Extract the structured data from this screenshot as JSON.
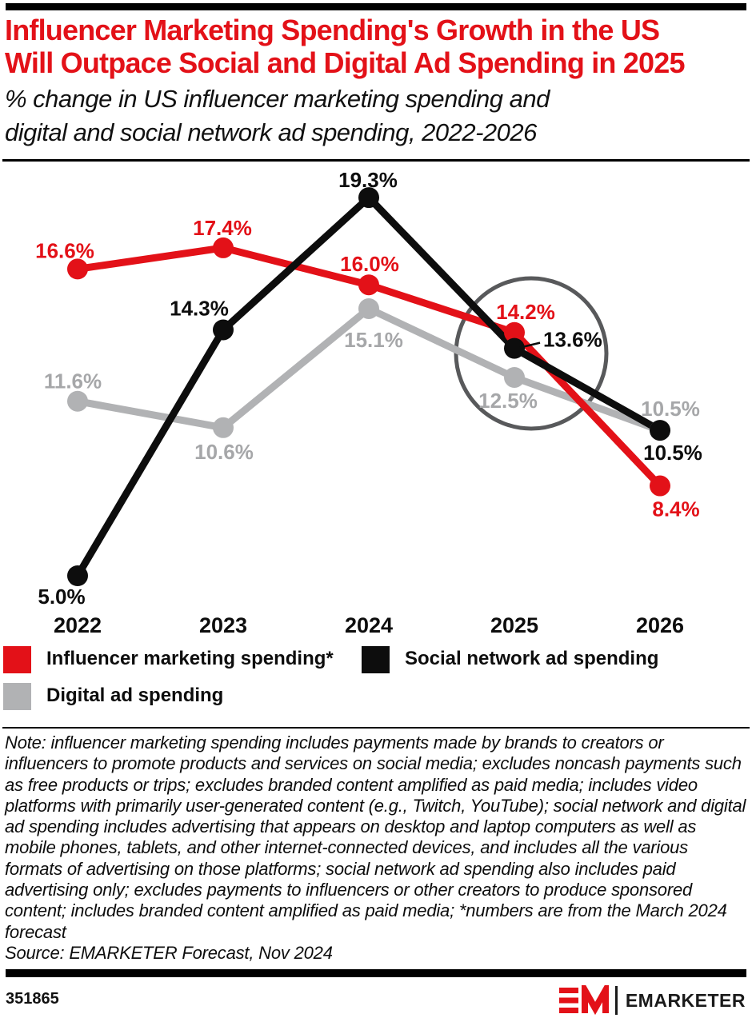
{
  "header": {
    "title_line1": "Influencer Marketing Spending's Growth in the US",
    "title_line2": "Will Outpace Social and Digital Ad Spending in 2025",
    "subtitle_line1": "% change in US influencer marketing spending and",
    "subtitle_line2": "digital and social network ad spending, 2022-2026"
  },
  "chart_data": {
    "type": "line",
    "title": "Influencer Marketing Spending's Growth in the US Will Outpace Social and Digital Ad Spending in 2025",
    "subtitle": "% change in US influencer marketing spending and digital and social network ad spending, 2022-2026",
    "categories": [
      "2022",
      "2023",
      "2024",
      "2025",
      "2026"
    ],
    "series": [
      {
        "name": "Influencer marketing spending*",
        "color": "#e31118",
        "label_color": "#e31118",
        "values": [
          16.6,
          17.4,
          16.0,
          14.2,
          8.4
        ],
        "labels": [
          "16.6%",
          "17.4%",
          "16.0%",
          "14.2%",
          "8.4%"
        ]
      },
      {
        "name": "Social network ad spending",
        "color": "#0d0d0d",
        "label_color": "#0d0d0d",
        "values": [
          5.0,
          14.3,
          19.3,
          13.6,
          10.5
        ],
        "labels": [
          "5.0%",
          "14.3%",
          "19.3%",
          "13.6%",
          "10.5%"
        ]
      },
      {
        "name": "Digital ad spending",
        "color": "#b1b2b4",
        "label_color": "#a6a7a9",
        "values": [
          11.6,
          10.6,
          15.1,
          12.5,
          10.5
        ],
        "labels": [
          "11.6%",
          "10.6%",
          "15.1%",
          "12.5%",
          "10.5%"
        ]
      }
    ],
    "annotation_circle": {
      "around_category": "2025",
      "color": "#58595b"
    },
    "xlabel": "",
    "ylabel": "",
    "ylim": [
      4,
      20
    ],
    "grid": false,
    "legend_position": "bottom",
    "unit": "%"
  },
  "legend": {
    "items": [
      {
        "label": "Influencer marketing spending*",
        "color": "#e31118"
      },
      {
        "label": "Social network ad spending",
        "color": "#0d0d0d"
      },
      {
        "label": "Digital ad spending",
        "color": "#b1b2b4"
      }
    ]
  },
  "note": {
    "text": "Note: influencer marketing spending includes payments made by brands to creators or influencers to promote products and services on social media; excludes noncash payments such as free products or trips; excludes branded content amplified as paid media; includes video platforms with primarily user-generated content (e.g., Twitch, YouTube); social network and digital ad spending includes advertising that appears on desktop and laptop computers as well as mobile phones, tablets, and other internet-connected devices, and includes all the various formats of advertising on those platforms; social network ad spending also includes paid advertising only; excludes payments to influencers or other creators to produce sponsored content; includes branded content amplified as paid media; *numbers are from the March 2024 forecast",
    "source": "Source: EMARKETER Forecast, Nov 2024"
  },
  "footer": {
    "chart_id": "351865",
    "brand": "EMARKETER"
  }
}
